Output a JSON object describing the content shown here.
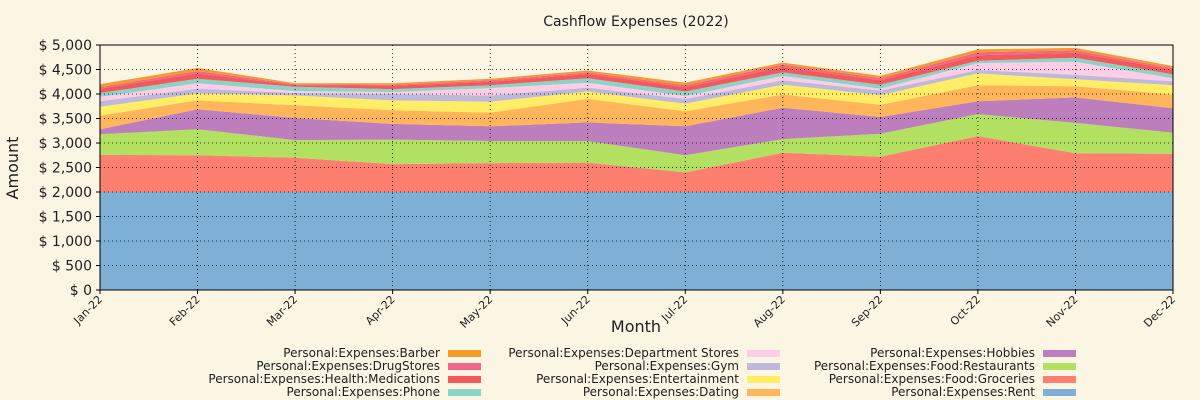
{
  "chart_data": {
    "type": "area",
    "stacked": true,
    "title": "Cashflow Expenses (2022)",
    "xlabel": "Month",
    "ylabel": "Amount",
    "ylim": [
      0,
      5000
    ],
    "yticks": [
      0,
      500,
      1000,
      1500,
      2000,
      2500,
      3000,
      3500,
      4000,
      4500,
      5000
    ],
    "ytick_labels": [
      "$ 0",
      "$ 500",
      "$ 1,000",
      "$ 1,500",
      "$ 2,000",
      "$ 2,500",
      "$ 3,000",
      "$ 3,500",
      "$ 4,000",
      "$ 4,500",
      "$ 5,000"
    ],
    "categories": [
      "Jan-22",
      "Feb-22",
      "Mar-22",
      "Apr-22",
      "May-22",
      "Jun-22",
      "Jul-22",
      "Aug-22",
      "Sep-22",
      "Oct-22",
      "Nov-22",
      "Dec-22"
    ],
    "grid": true,
    "legend_position": "bottom",
    "series": [
      {
        "name": "Personal:Expenses:Rent",
        "color": "#7eb0d5",
        "values": [
          2000,
          2000,
          2000,
          2000,
          2000,
          2000,
          2000,
          2000,
          2000,
          2000,
          2000,
          2000
        ]
      },
      {
        "name": "Personal:Expenses:Food:Groceries",
        "color": "#fd7f6f",
        "values": [
          760,
          750,
          700,
          570,
          590,
          600,
          400,
          800,
          720,
          1140,
          790,
          780
        ]
      },
      {
        "name": "Personal:Expenses:Food:Restaurants",
        "color": "#b2e061",
        "values": [
          420,
          530,
          360,
          500,
          450,
          440,
          350,
          280,
          470,
          450,
          620,
          430
        ]
      },
      {
        "name": "Personal:Expenses:Hobbies",
        "color": "#bd7ebe",
        "values": [
          100,
          410,
          450,
          320,
          300,
          380,
          590,
          640,
          340,
          260,
          520,
          500
        ]
      },
      {
        "name": "Personal:Expenses:Dating",
        "color": "#ffb55a",
        "values": [
          280,
          180,
          260,
          280,
          280,
          480,
          310,
          270,
          250,
          330,
          230,
          280
        ]
      },
      {
        "name": "Personal:Expenses:Entertainment",
        "color": "#ffee65",
        "values": [
          180,
          140,
          200,
          200,
          220,
          150,
          150,
          200,
          200,
          240,
          140,
          190
        ]
      },
      {
        "name": "Personal:Expenses:Gym",
        "color": "#beb9db",
        "values": [
          110,
          100,
          50,
          130,
          130,
          80,
          100,
          90,
          90,
          70,
          90,
          80
        ]
      },
      {
        "name": "Personal:Expenses:Department Stores",
        "color": "#fdcce5",
        "values": [
          90,
          110,
          40,
          40,
          150,
          100,
          60,
          90,
          40,
          140,
          270,
          60
        ]
      },
      {
        "name": "Personal:Expenses:Phone",
        "color": "#8bd3c7",
        "values": [
          80,
          90,
          90,
          60,
          60,
          90,
          90,
          70,
          80,
          50,
          80,
          80
        ]
      },
      {
        "name": "Personal:Expenses:Health:Medications",
        "color": "#f25a5a",
        "values": [
          90,
          110,
          30,
          70,
          70,
          90,
          90,
          110,
          90,
          110,
          100,
          100
        ]
      },
      {
        "name": "Personal:Expenses:DrugStores",
        "color": "#f1678a",
        "values": [
          30,
          50,
          20,
          20,
          30,
          30,
          40,
          50,
          40,
          60,
          50,
          30
        ]
      },
      {
        "name": "Personal:Expenses:Barber",
        "color": "#f59a29",
        "values": [
          60,
          60,
          20,
          30,
          30,
          40,
          50,
          40,
          50,
          60,
          50,
          40
        ]
      }
    ],
    "legend_order": [
      [
        "Personal:Expenses:Barber",
        "Personal:Expenses:DrugStores",
        "Personal:Expenses:Health:Medications",
        "Personal:Expenses:Phone"
      ],
      [
        "Personal:Expenses:Department Stores",
        "Personal:Expenses:Gym",
        "Personal:Expenses:Entertainment",
        "Personal:Expenses:Dating"
      ],
      [
        "Personal:Expenses:Hobbies",
        "Personal:Expenses:Food:Restaurants",
        "Personal:Expenses:Food:Groceries",
        "Personal:Expenses:Rent"
      ]
    ]
  }
}
